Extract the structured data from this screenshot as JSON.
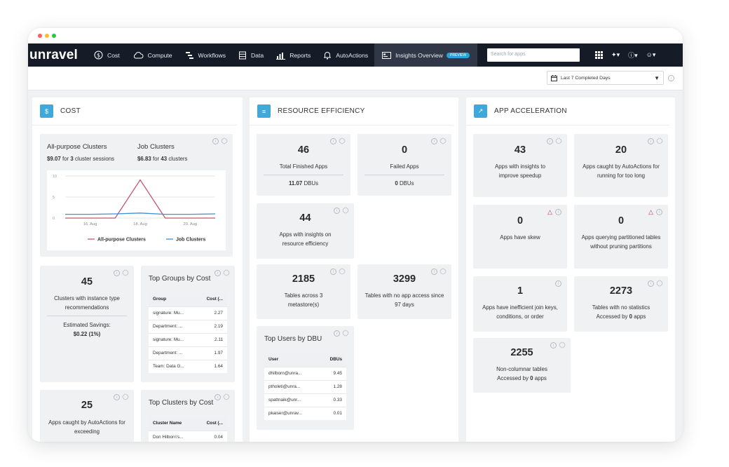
{
  "nav": {
    "logo": "unravel",
    "items": [
      {
        "label": "Cost",
        "icon": "dollar-circle-icon"
      },
      {
        "label": "Compute",
        "icon": "cloud-icon"
      },
      {
        "label": "Workflows",
        "icon": "workflow-icon"
      },
      {
        "label": "Data",
        "icon": "database-icon"
      },
      {
        "label": "Reports",
        "icon": "bar-chart-icon"
      },
      {
        "label": "AutoActions",
        "icon": "bell-icon"
      }
    ],
    "active": {
      "label": "Insights Overview",
      "badge": "PREVIEW",
      "icon": "dashboard-icon"
    },
    "search_placeholder": "Search for apps"
  },
  "toolbar": {
    "date_range": "Last 7 Completed Days"
  },
  "cost": {
    "title": "COST",
    "chart_card": {
      "all_purpose_title": "All-purpose Clusters",
      "all_purpose_amount": "$9.07",
      "all_purpose_rest": " for ",
      "all_purpose_count": "3",
      "all_purpose_unit": " cluster sessions",
      "job_title": "Job Clusters",
      "job_amount": "$6.83",
      "job_rest": " for ",
      "job_count": "43",
      "job_unit": " clusters"
    },
    "clusters_card": {
      "value": "45",
      "desc": "Clusters with instance type recommendations",
      "savings_label": "Estimated Savings:",
      "savings": "$0.22 (1%)"
    },
    "top_groups": {
      "title": "Top Groups by Cost",
      "headers": [
        "Group",
        "Cost (..."
      ],
      "rows": [
        [
          "signature: Mu...",
          "2.27"
        ],
        [
          "Department: ...",
          "2.19"
        ],
        [
          "signature: Mu...",
          "2.11"
        ],
        [
          "Department: ...",
          "1.97"
        ],
        [
          "Team: Data G...",
          "1.64"
        ]
      ]
    },
    "autoactions_card": {
      "value": "25",
      "desc": "Apps caught by AutoActions for exceeding"
    },
    "top_clusters": {
      "title": "Top Clusters by Cost",
      "headers": [
        "Cluster Name",
        "Cost (..."
      ],
      "rows": [
        [
          "Don Hilborn's...",
          "0.04"
        ]
      ]
    }
  },
  "chart_data": {
    "type": "line",
    "x": [
      "15 Aug",
      "16 Aug",
      "17 Aug",
      "18 Aug",
      "19 Aug",
      "20 Aug",
      "21 Aug"
    ],
    "x_tick_labels": [
      "16. Aug",
      "18. Aug",
      "20. Aug"
    ],
    "series": [
      {
        "name": "All-purpose Clusters",
        "values": [
          0,
          0,
          0,
          9.07,
          0,
          0,
          0
        ],
        "color": "#c0566e"
      },
      {
        "name": "Job Clusters",
        "values": [
          0.9,
          0.9,
          1.0,
          1.2,
          0.9,
          0.9,
          1.0
        ],
        "color": "#3d8fd6"
      }
    ],
    "yticks": [
      0,
      5,
      10
    ],
    "ylim": [
      0,
      10
    ],
    "grid": true,
    "legend": "bottom"
  },
  "resource": {
    "title": "RESOURCE EFFICIENCY",
    "finished": {
      "value": "46",
      "desc": "Total Finished Apps",
      "sub_value": "11.07",
      "sub_unit": " DBUs"
    },
    "failed": {
      "value": "0",
      "desc": "Failed Apps",
      "sub_value": "0",
      "sub_unit": " DBUs"
    },
    "insights": {
      "value": "44",
      "desc": "Apps with insights on resource efficiency"
    },
    "tables_metastore": {
      "value": "2185",
      "desc": "Tables across 3 metastore(s)"
    },
    "tables_no_access": {
      "value": "3299",
      "desc": "Tables with no app access since 97 days"
    },
    "top_users": {
      "title": "Top Users by DBU",
      "headers": [
        "User",
        "DBUs"
      ],
      "rows": [
        [
          "dhilborn@unra...",
          "9.45"
        ],
        [
          "ptholeti@unra...",
          "1.28"
        ],
        [
          "spattnaik@unr...",
          "0.33"
        ],
        [
          "pkaiser@unrav...",
          "0.01"
        ]
      ]
    }
  },
  "accel": {
    "title": "APP ACCELERATION",
    "speedup": {
      "value": "43",
      "desc": "Apps with insights to improve speedup"
    },
    "running_long": {
      "value": "20",
      "desc": "Apps caught by AutoActions for running for too long"
    },
    "skew": {
      "value": "0",
      "desc": "Apps have skew"
    },
    "pruning": {
      "value": "0",
      "desc": "Apps querying partitioned tables without pruning partitions"
    },
    "join": {
      "value": "1",
      "desc": "Apps have inefficient join keys, conditions, or order"
    },
    "no_stats": {
      "value": "2273",
      "desc_a": "Tables with no statistics",
      "desc_b": "Accessed by ",
      "desc_count": "0",
      "desc_c": " apps"
    },
    "non_columnar": {
      "value": "2255",
      "desc_a": "Non-columnar tables",
      "desc_b": "Accessed by ",
      "desc_count": "0",
      "desc_c": " apps"
    }
  }
}
